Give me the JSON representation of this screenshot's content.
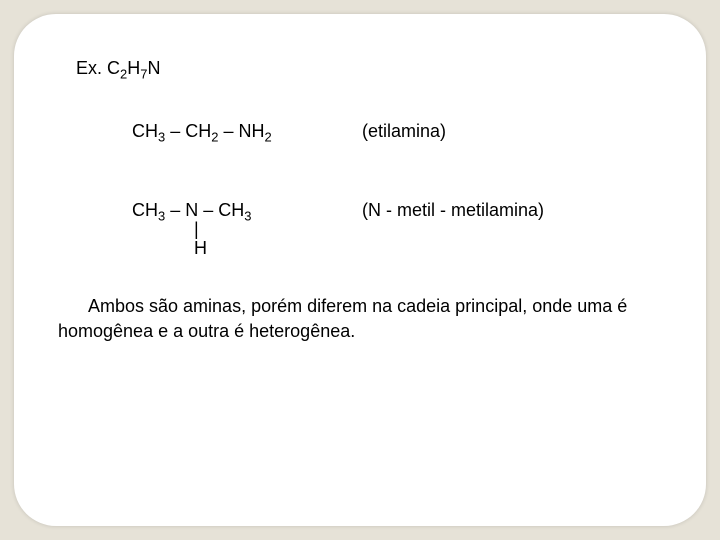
{
  "colors": {
    "page_background": "#e6e2d7",
    "card_background": "#ffffff",
    "text": "#000000",
    "outer": "#000000"
  },
  "typography": {
    "font_family": "Arial",
    "base_fontsize_pt": 14
  },
  "heading": {
    "prefix": "Ex. C",
    "sub1": "2",
    "mid1": "H",
    "sub2": "7",
    "tail": "N"
  },
  "formula1": {
    "p1": "CH",
    "s1": "3",
    "p2": " – CH",
    "s2": "2",
    "p3": " – NH",
    "s3": "2",
    "name": "(etilamina)"
  },
  "formula2": {
    "p1": "CH",
    "s1": "3",
    "p2": " – N  – CH",
    "s2": "3",
    "bond": "|",
    "bond_atom": "H",
    "name": "(N - metil - metilamina)"
  },
  "paragraph": "Ambos são aminas, porém diferem na cadeia principal, onde uma é homogênea e a outra é heterogênea."
}
